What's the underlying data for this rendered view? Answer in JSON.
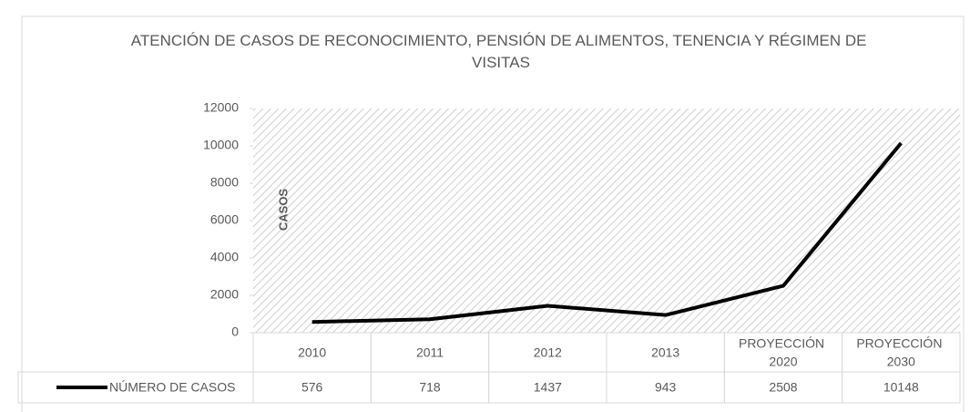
{
  "chart_data": {
    "type": "line",
    "title": "ATENCIÓN DE CASOS DE RECONOCIMIENTO, PENSIÓN DE ALIMENTOS, TENENCIA Y RÉGIMEN DE VISITAS",
    "y_label": "CASOS",
    "categories": [
      "2010",
      "2011",
      "2012",
      "2013",
      "PROYECCIÓN 2020",
      "PROYECCIÓN 2030"
    ],
    "series": [
      {
        "name": "NÚMERO DE CASOS",
        "color": "#000000",
        "values": [
          576,
          718,
          1437,
          943,
          2508,
          10148
        ]
      }
    ],
    "ylim": [
      0,
      12000
    ],
    "yticks": [
      0,
      2000,
      4000,
      6000,
      8000,
      10000,
      12000
    ],
    "data_table": true
  }
}
